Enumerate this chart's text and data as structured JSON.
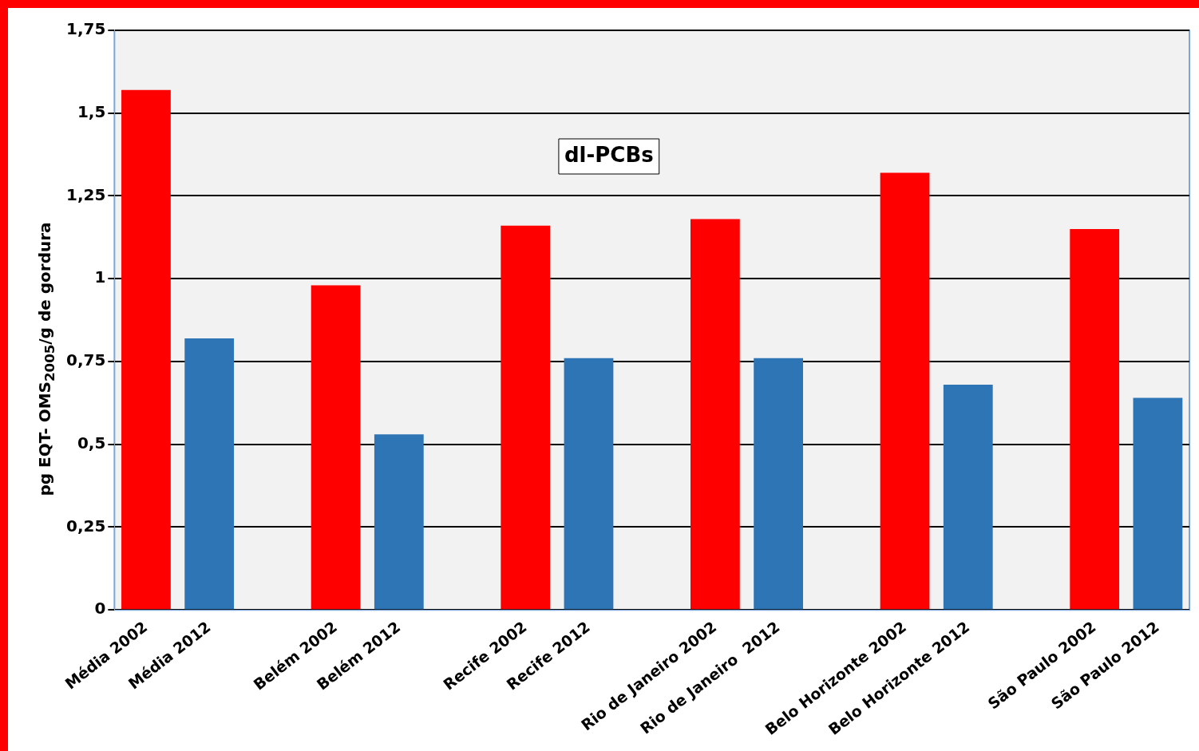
{
  "chart_data": {
    "type": "bar",
    "annotations": [
      "dl-PCBs"
    ],
    "ylabel": "pg EQT- OMS$_{2005}$/g de gordura",
    "categories": [
      "Média 2002",
      "Média 2012",
      null,
      "Belém 2002",
      "Belém 2012",
      null,
      "Recife 2002",
      "Recife 2012",
      null,
      "Rio de Janeiro 2002",
      "Rio de Janeiro  2012",
      null,
      "Belo Horizonte 2002",
      "Belo Horizonte 2012",
      null,
      "São Paulo 2002",
      "São Paulo 2012"
    ],
    "values": [
      1.57,
      0.82,
      null,
      0.98,
      0.53,
      null,
      1.16,
      0.76,
      null,
      1.18,
      0.76,
      null,
      1.32,
      0.68,
      null,
      1.15,
      0.64
    ],
    "colors": [
      "#ff0000",
      "#2e75b6",
      null,
      "#ff0000",
      "#2e75b6",
      null,
      "#ff0000",
      "#2e75b6",
      null,
      "#ff0000",
      "#2e75b6",
      null,
      "#ff0000",
      "#2e75b6",
      null,
      "#ff0000",
      "#2e75b6"
    ],
    "ylim": [
      0,
      1.75
    ],
    "yticks": [
      0,
      {
        "value": 0.25,
        "label": "0,25"
      },
      {
        "value": 0.5,
        "label": "0,5"
      },
      {
        "value": 0.75,
        "label": "0,75"
      },
      1,
      {
        "value": 1.25,
        "label": "1,25"
      },
      {
        "value": 1.5,
        "label": "1,5"
      },
      {
        "value": 1.75,
        "label": "1,75"
      }
    ],
    "grid": "y",
    "legend": false
  }
}
